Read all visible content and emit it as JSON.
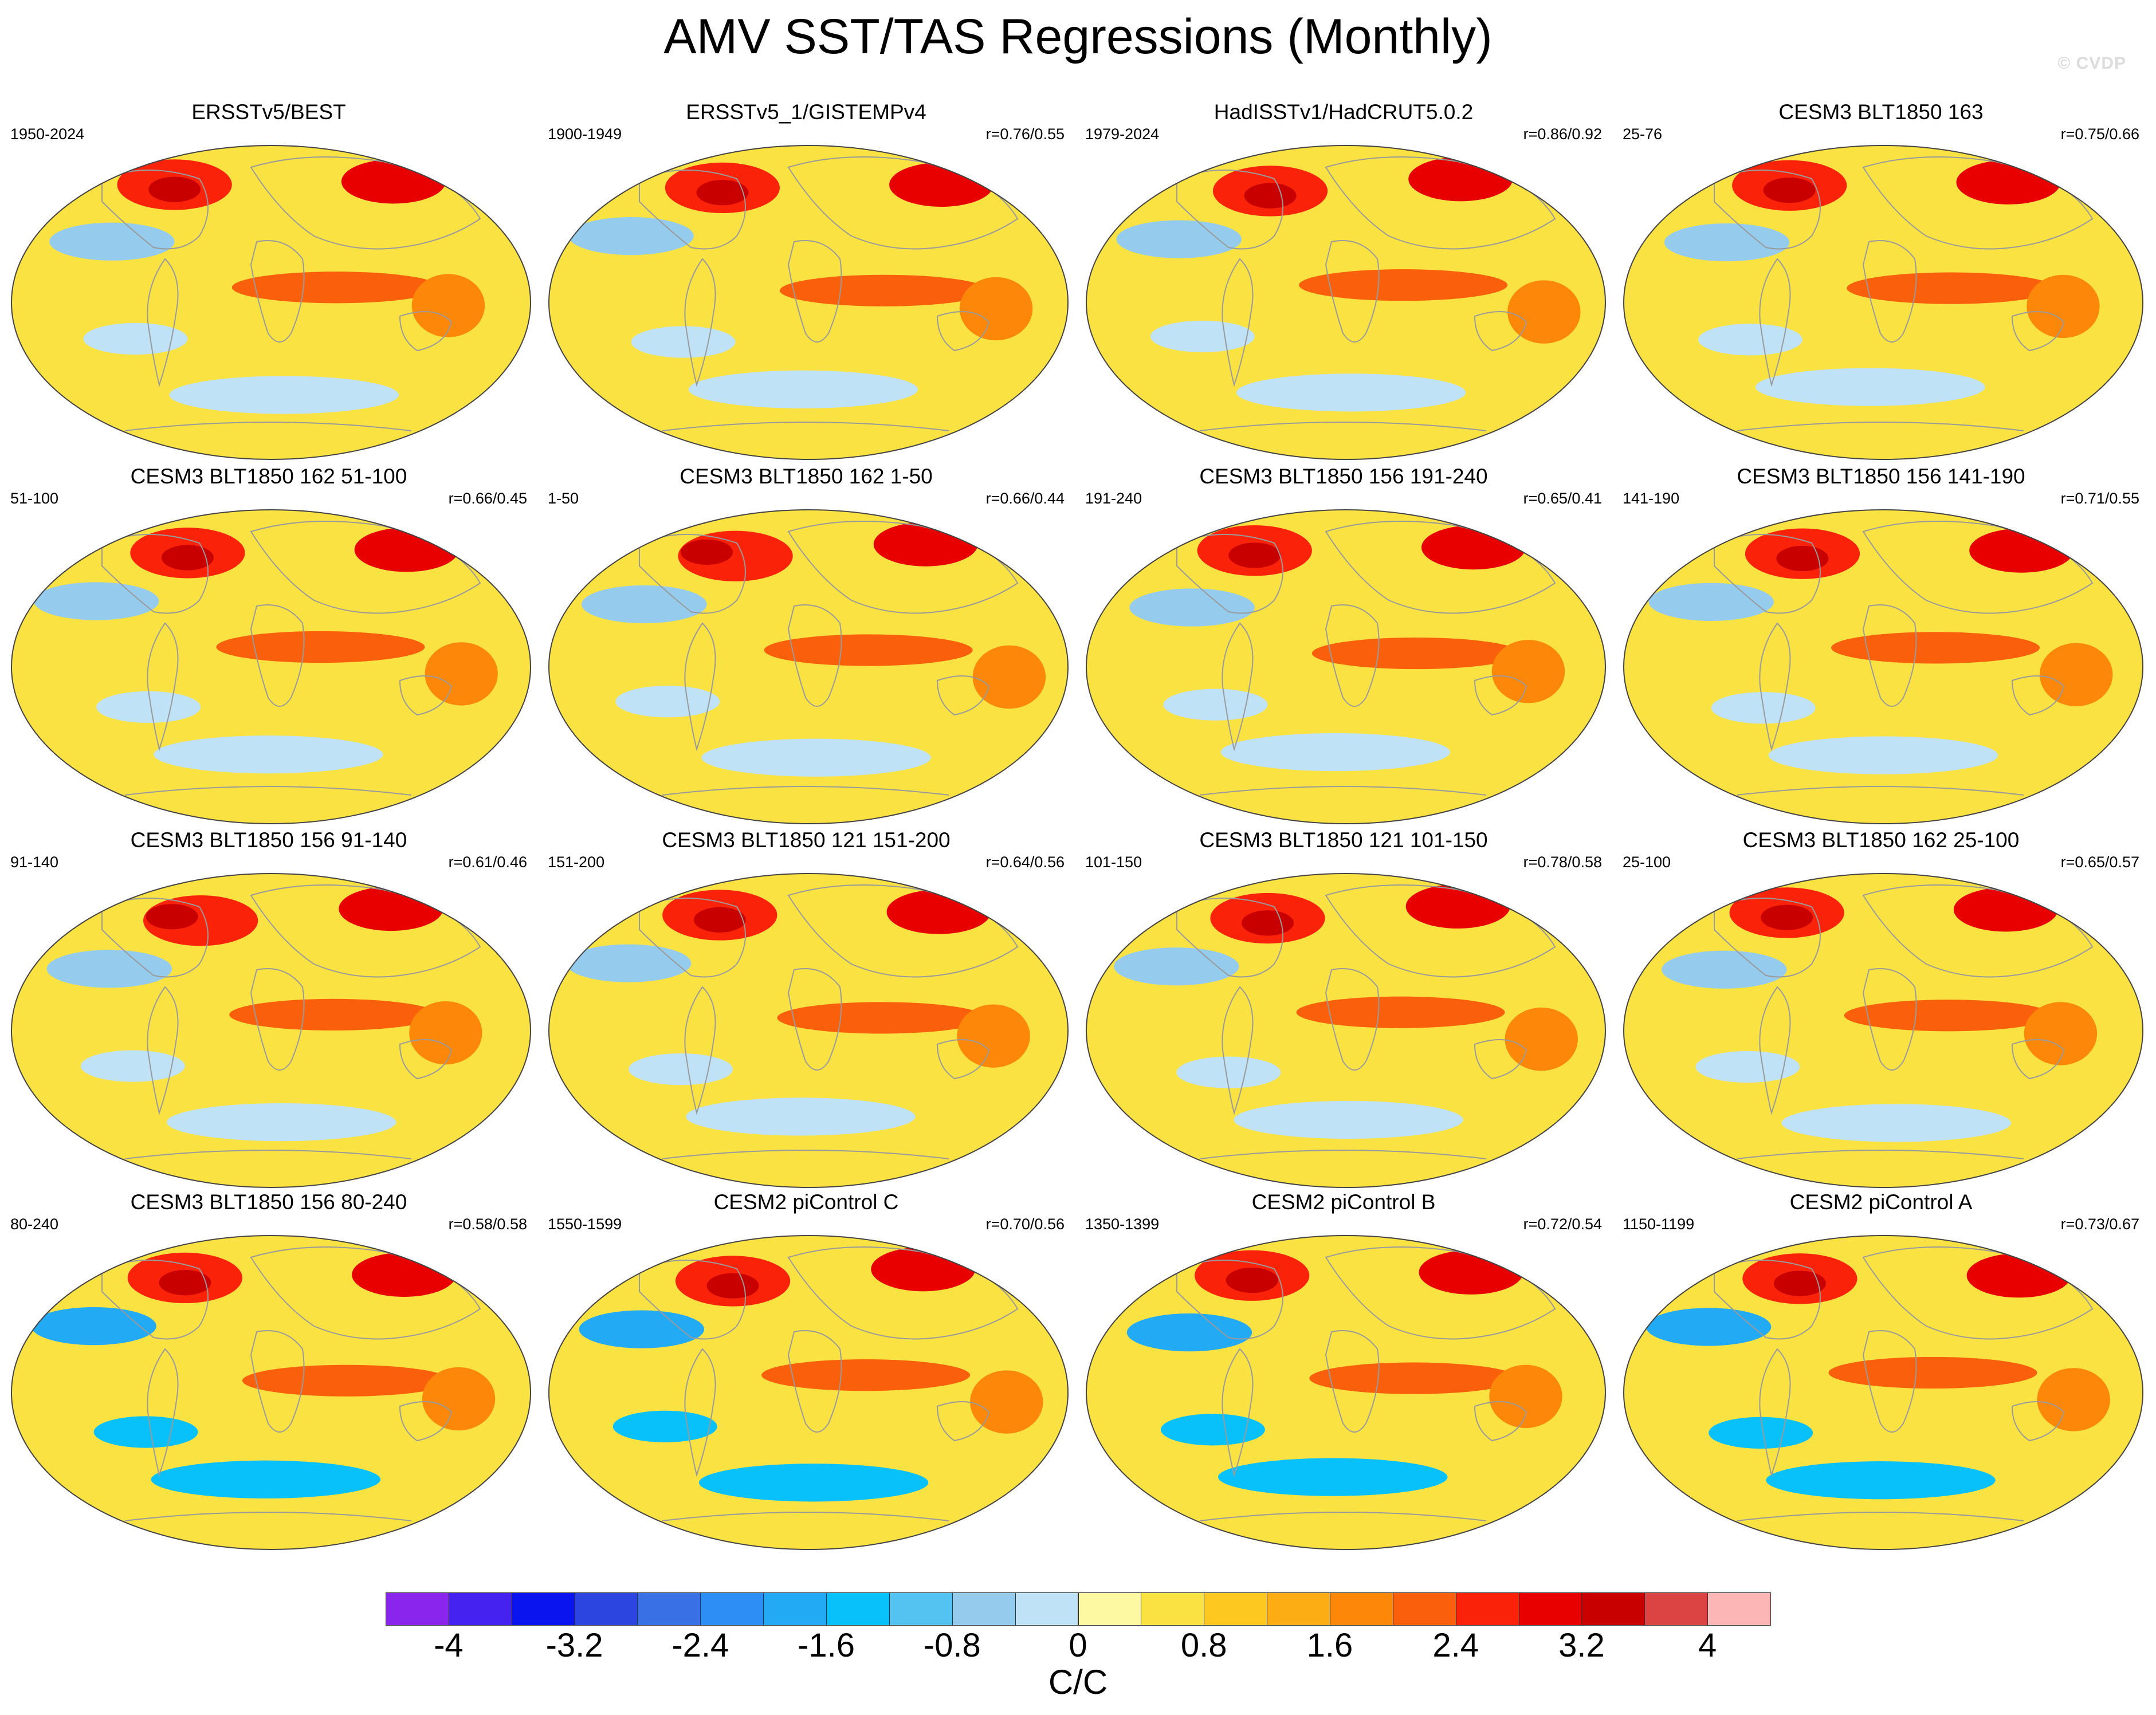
{
  "title": "AMV SST/TAS Regressions (Monthly)",
  "watermark": "© CVDP",
  "panels": [
    {
      "title": "ERSSTv5/BEST",
      "years": "1950-2024",
      "corr": ""
    },
    {
      "title": "ERSSTv5_1/GISTEMPv4",
      "years": "1900-1949",
      "corr": "r=0.76/0.55"
    },
    {
      "title": "HadISSTv1/HadCRUT5.0.2",
      "years": "1979-2024",
      "corr": "r=0.86/0.92"
    },
    {
      "title": "CESM3 BLT1850 163",
      "years": "25-76",
      "corr": "r=0.75/0.66"
    },
    {
      "title": "CESM3 BLT1850 162 51-100",
      "years": "51-100",
      "corr": "r=0.66/0.45"
    },
    {
      "title": "CESM3 BLT1850 162 1-50",
      "years": "1-50",
      "corr": "r=0.66/0.44"
    },
    {
      "title": "CESM3 BLT1850 156 191-240",
      "years": "191-240",
      "corr": "r=0.65/0.41"
    },
    {
      "title": "CESM3 BLT1850 156 141-190",
      "years": "141-190",
      "corr": "r=0.71/0.55"
    },
    {
      "title": "CESM3 BLT1850 156 91-140",
      "years": "91-140",
      "corr": "r=0.61/0.46"
    },
    {
      "title": "CESM3 BLT1850 121 151-200",
      "years": "151-200",
      "corr": "r=0.64/0.56"
    },
    {
      "title": "CESM3 BLT1850 121 101-150",
      "years": "101-150",
      "corr": "r=0.78/0.58"
    },
    {
      "title": "CESM3 BLT1850 162 25-100",
      "years": "25-100",
      "corr": "r=0.65/0.57"
    },
    {
      "title": "CESM3 BLT1850 156 80-240",
      "years": "80-240",
      "corr": "r=0.58/0.58"
    },
    {
      "title": "CESM2 piControl C",
      "years": "1550-1599",
      "corr": "r=0.70/0.56"
    },
    {
      "title": "CESM2 piControl B",
      "years": "1350-1399",
      "corr": "r=0.72/0.54"
    },
    {
      "title": "CESM2 piControl A",
      "years": "1150-1199",
      "corr": "r=0.73/0.67"
    }
  ],
  "colorbar": {
    "colors": [
      "#8a25ee",
      "#4522f0",
      "#0a14ef",
      "#2c44e0",
      "#3a70e6",
      "#2d8ff5",
      "#22aaf5",
      "#08c0fa",
      "#55c3f2",
      "#95cced",
      "#bfe2f6",
      "#fdf9a2",
      "#fbe243",
      "#fdc921",
      "#fcad14",
      "#fc8708",
      "#fa5f0b",
      "#fa2309",
      "#e80000",
      "#c80000",
      "#dc4343",
      "#fcb6b6"
    ],
    "labels": [
      "-4",
      "-3.2",
      "-2.4",
      "-1.6",
      "-0.8",
      "0",
      "0.8",
      "1.6",
      "2.4",
      "3.2",
      "4"
    ],
    "units": "C/C"
  }
}
